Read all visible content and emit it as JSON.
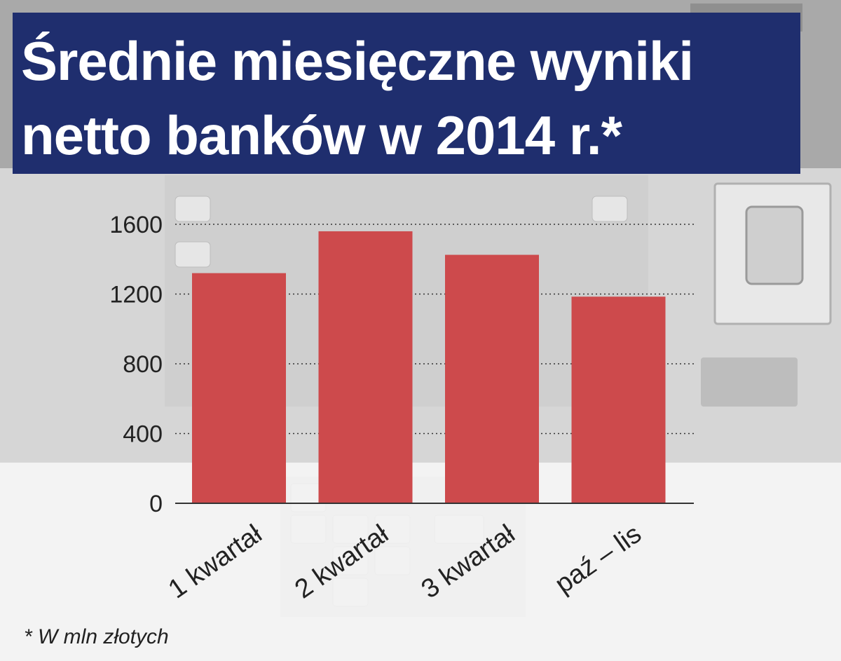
{
  "title": {
    "line1": "Średnie miesięczne wyniki",
    "line2": "netto banków w 2014 r.*"
  },
  "footnote": "* W mln złotych",
  "colors": {
    "bar": "#cd4a4c",
    "title_bg": "#1f2e6e",
    "title_text": "#ffffff"
  },
  "chart_data": {
    "type": "bar",
    "title": "Średnie miesięczne wyniki netto banków w 2014 r.*",
    "categories": [
      "1 kwartał",
      "2 kwartał",
      "3 kwartał",
      "paź – lis"
    ],
    "values": [
      1320,
      1560,
      1425,
      1185
    ],
    "ylim": [
      0,
      1600
    ],
    "yticks": [
      0,
      400,
      800,
      1200,
      1600
    ],
    "xlabel": "",
    "ylabel": "",
    "grid": "horizontal dotted",
    "unit_note": "* W mln złotych"
  }
}
